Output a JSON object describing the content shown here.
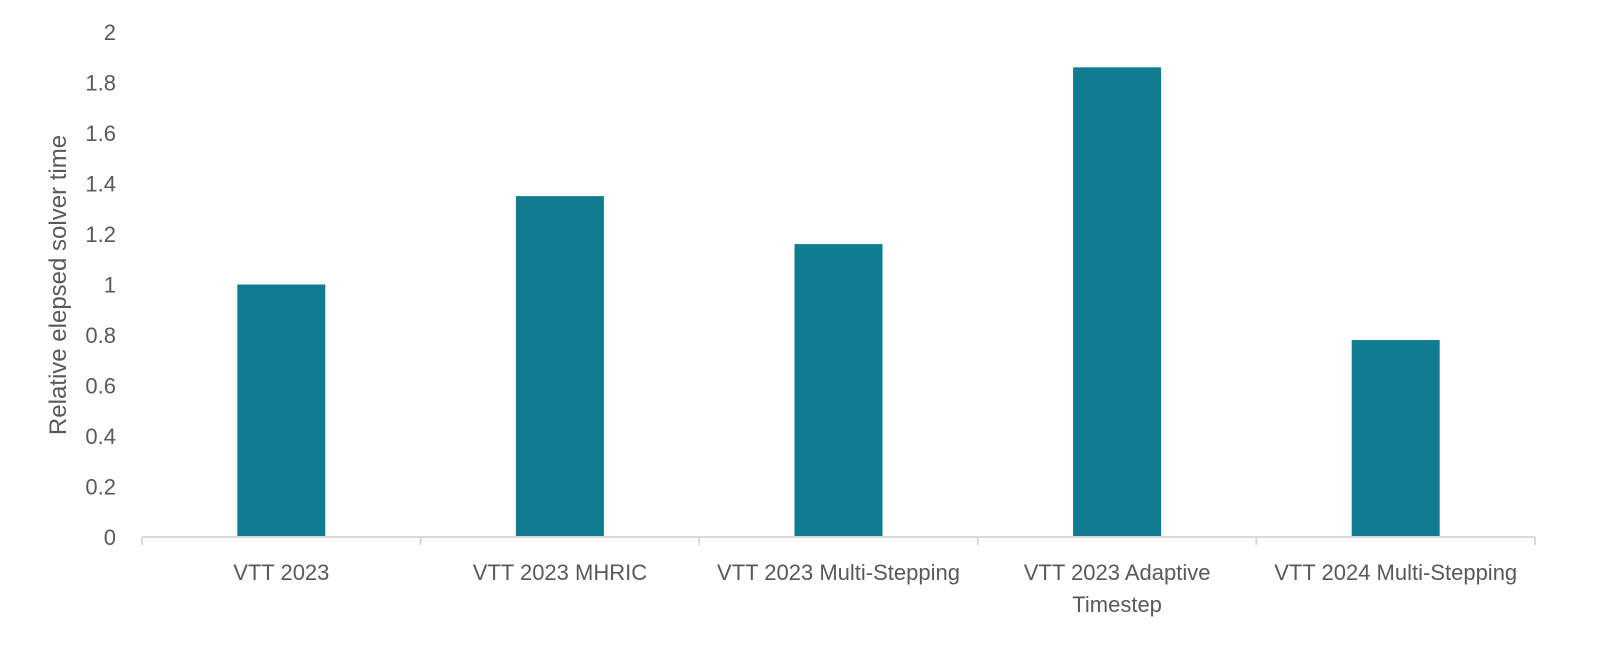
{
  "chart_data": {
    "type": "bar",
    "categories": [
      "VTT 2023",
      "VTT 2023 MHRIC",
      "VTT 2023 Multi-Stepping",
      "VTT 2023 Adaptive Timestep",
      "VTT 2024 Multi-Stepping"
    ],
    "category_label_lines": [
      [
        "VTT 2023"
      ],
      [
        "VTT 2023 MHRIC"
      ],
      [
        "VTT 2023 Multi-Stepping"
      ],
      [
        "VTT 2023 Adaptive",
        "Timestep"
      ],
      [
        "VTT 2024 Multi-Stepping"
      ]
    ],
    "values": [
      1.0,
      1.35,
      1.16,
      1.86,
      0.78
    ],
    "xlabel": "",
    "ylabel": "Relative elepsed solver time",
    "ylim": [
      0,
      2
    ],
    "yticks": [
      0,
      0.2,
      0.4,
      0.6,
      0.8,
      1,
      1.2,
      1.4,
      1.6,
      1.8,
      2
    ],
    "ytick_labels": [
      "0",
      "0.2",
      "0.4",
      "0.6",
      "0.8",
      "1",
      "1.2",
      "1.4",
      "1.6",
      "1.8",
      "2"
    ],
    "grid": false,
    "legend": "none",
    "bar_color": "#107C91",
    "axis_color": "#D9D9D9",
    "text_color": "#595959"
  }
}
